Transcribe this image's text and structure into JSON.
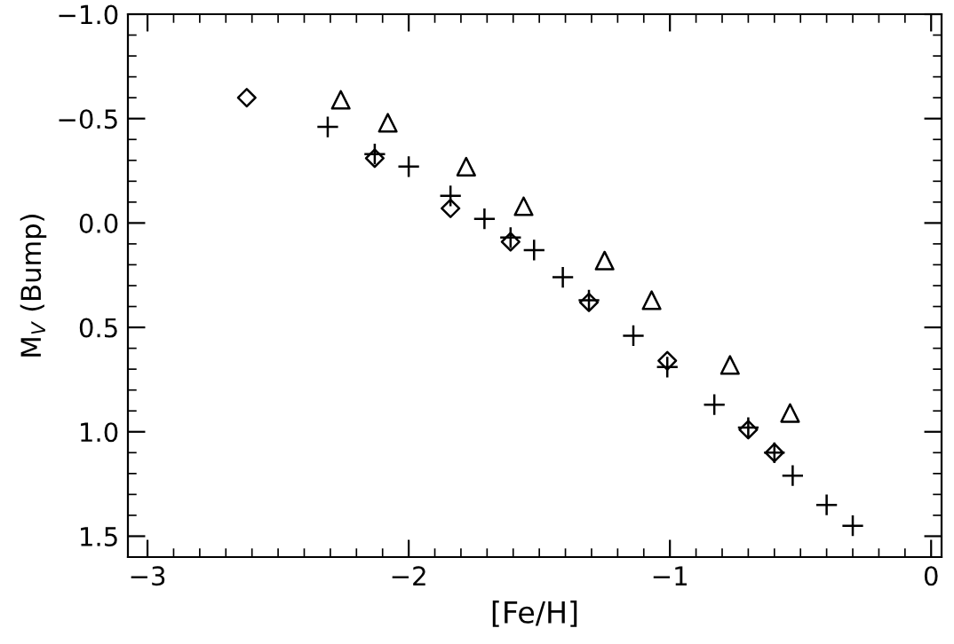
{
  "chart_data": {
    "type": "scatter",
    "xlabel": "[Fe/H]",
    "ylabel": "M$_{V}$ (Bump)",
    "xlim": [
      -3.075,
      0.04
    ],
    "ylim": [
      1.6,
      -1.0
    ],
    "xticks": [
      {
        "value": -3,
        "label": "−3"
      },
      {
        "value": -2,
        "label": "−2"
      },
      {
        "value": -1,
        "label": "−1"
      },
      0
    ],
    "yticks": [
      {
        "value": -1.0,
        "label": "−1.0"
      },
      {
        "value": -0.5,
        "label": "−0.5"
      },
      {
        "value": 0.0,
        "label": "0.0"
      },
      {
        "value": 0.5,
        "label": "0.5"
      },
      {
        "value": 1.0,
        "label": "1.0"
      },
      {
        "value": 1.5,
        "label": "1.5"
      }
    ],
    "grid": false,
    "legend": false,
    "series": [
      {
        "marker": "diamond",
        "color": "#000000",
        "x": [
          -2.62,
          -2.13,
          -1.84,
          -1.61,
          -1.31,
          -1.01,
          -0.7,
          -0.6
        ],
        "values": [
          -0.6,
          -0.31,
          -0.07,
          0.09,
          0.38,
          0.66,
          0.99,
          1.1
        ]
      },
      {
        "marker": "triangle",
        "color": "#000000",
        "x": [
          -2.26,
          -2.08,
          -1.78,
          -1.56,
          -1.25,
          -1.07,
          -0.77,
          -0.54
        ],
        "values": [
          -0.59,
          -0.48,
          -0.27,
          -0.08,
          0.18,
          0.37,
          0.68,
          0.91
        ]
      },
      {
        "marker": "cross",
        "color": "#000000",
        "x": [
          -2.31,
          -2.13,
          -2.0,
          -1.84,
          -1.71,
          -1.61,
          -1.52,
          -1.41,
          -1.31,
          -1.14,
          -1.01,
          -0.83,
          -0.7,
          -0.6,
          -0.53,
          -0.4,
          -0.3
        ],
        "values": [
          -0.46,
          -0.33,
          -0.27,
          -0.13,
          -0.02,
          0.07,
          0.13,
          0.26,
          0.37,
          0.54,
          0.69,
          0.87,
          0.98,
          1.1,
          1.21,
          1.35,
          1.45
        ]
      }
    ]
  }
}
